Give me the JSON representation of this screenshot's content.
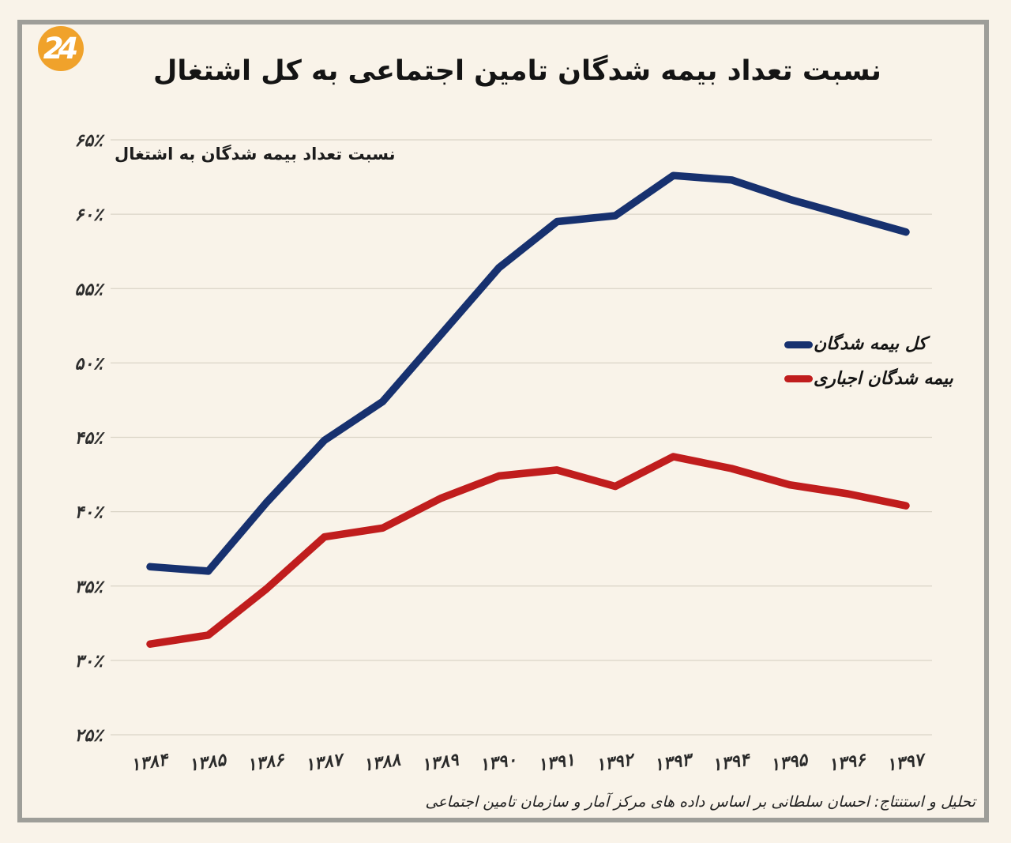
{
  "logo": {
    "text": "24",
    "bg_color": "#f0a22b",
    "text_color": "#ffffff"
  },
  "title": "نسبت تعداد بیمه شدگان تامین اجتماعی به کل اشتغال",
  "subtitle": "نسبت تعداد بیمه شدگان به اشتغال",
  "source": "تحلیل و استنتاج: احسان سلطانی بر اساس داده های مرکز آمار و سازمان تامین اجتماعی",
  "colors": {
    "background": "#f9f3e9",
    "frame_border": "#9e9e99",
    "gridline": "#dad4c7",
    "series_total": "#17316f",
    "series_compulsory": "#c01d1d"
  },
  "legend": [
    {
      "label": "کل بیمه شدگان",
      "color": "#17316f"
    },
    {
      "label": "بیمه شدگان اجباری",
      "color": "#c01d1d"
    }
  ],
  "chart_data": {
    "type": "line",
    "title": "نسبت تعداد بیمه شدگان تامین اجتماعی به کل اشتغال",
    "xlabel": "",
    "ylabel": "",
    "x_labels": [
      "۱۳۸۴",
      "۱۳۸۵",
      "۱۳۸۶",
      "۱۳۸۷",
      "۱۳۸۸",
      "۱۳۸۹",
      "۱۳۹۰",
      "۱۳۹۱",
      "۱۳۹۲",
      "۱۳۹۳",
      "۱۳۹۴",
      "۱۳۹۵",
      "۱۳۹۶",
      "۱۳۹۷"
    ],
    "x_values": [
      1384,
      1385,
      1386,
      1387,
      1388,
      1389,
      1390,
      1391,
      1392,
      1393,
      1394,
      1395,
      1396,
      1397
    ],
    "y_tick_labels": [
      "۲۵٪",
      "۳۰٪",
      "۳۵٪",
      "۴۰٪",
      "۴۵٪",
      "۵۰٪",
      "۵۵٪",
      "۶۰٪",
      "۶۵٪"
    ],
    "y_tick_values": [
      25,
      30,
      35,
      40,
      45,
      50,
      55,
      60,
      65
    ],
    "ylim": [
      25,
      65
    ],
    "grid": "horizontal",
    "legend_position": "right-middle",
    "series": [
      {
        "name": "کل بیمه شدگان",
        "color": "#17316f",
        "values": [
          36.3,
          36.0,
          40.6,
          44.8,
          47.4,
          51.9,
          56.4,
          59.5,
          59.9,
          62.6,
          62.3,
          61.0,
          59.9,
          58.8
        ]
      },
      {
        "name": "بیمه شدگان اجباری",
        "color": "#c01d1d",
        "values": [
          31.1,
          31.7,
          34.8,
          38.3,
          38.9,
          40.9,
          42.4,
          42.8,
          41.7,
          43.7,
          42.9,
          41.8,
          41.2,
          40.4
        ]
      }
    ]
  }
}
